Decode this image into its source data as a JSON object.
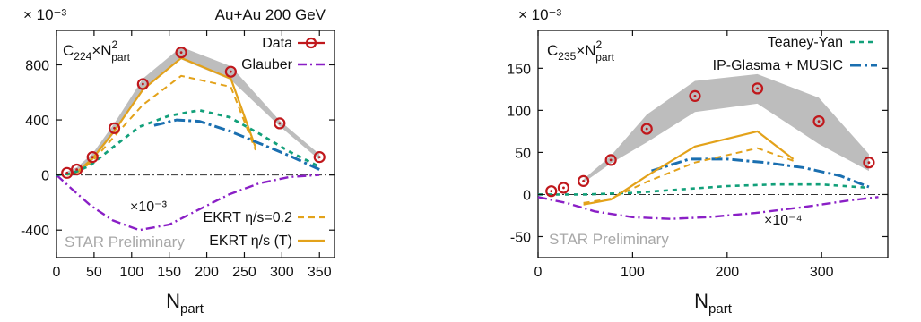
{
  "colors": {
    "data": "#c0181c",
    "band": "#bdbdbd",
    "glauber": "#8a1fc6",
    "ekrt": "#e3a21a",
    "teaney": "#12a07a",
    "glasma": "#1a6fb0",
    "prelim": "#a8a8a8"
  },
  "chart_data": [
    {
      "type": "line",
      "scale_label": "× 10⁻³",
      "top_label": "Au+Au 200 GeV",
      "ylabel_main": "C",
      "ylabel_sub": "224",
      "ylabel_mid": "×N",
      "ylabel_sup": "2",
      "ylabel_sub2": "part",
      "xlabel_main": "N",
      "xlabel_sub": "part",
      "prelim": "STAR Preliminary",
      "annotation": "×10⁻³",
      "xlim": [
        0,
        370
      ],
      "ylim": [
        -600,
        1050
      ],
      "xticks": [
        0,
        50,
        100,
        150,
        200,
        250,
        300,
        350
      ],
      "yticks": [
        -400,
        0,
        400,
        800
      ],
      "series": [
        {
          "name": "Data",
          "x": [
            14,
            27,
            48,
            77,
            115,
            166,
            232,
            297,
            350
          ],
          "y": [
            15,
            40,
            130,
            340,
            660,
            890,
            750,
            375,
            130
          ]
        },
        {
          "name": "Glauber",
          "x": [
            0,
            20,
            45,
            75,
            110,
            150,
            190,
            230,
            270,
            310,
            350
          ],
          "y": [
            0,
            -100,
            -220,
            -330,
            -400,
            -360,
            -250,
            -140,
            -60,
            -15,
            0
          ]
        },
        {
          "name": "EKRT η/s=0.2",
          "x": [
            14,
            27,
            48,
            77,
            115,
            166,
            232,
            265
          ],
          "y": [
            0,
            15,
            100,
            280,
            510,
            720,
            640,
            180
          ]
        },
        {
          "name": "EKRT η/s (T)",
          "x": [
            14,
            27,
            48,
            77,
            115,
            166,
            232,
            265
          ],
          "y": [
            0,
            20,
            120,
            320,
            620,
            850,
            700,
            200
          ]
        },
        {
          "name": "",
          "x": [
            0,
            20,
            45,
            75,
            110,
            150,
            190,
            230,
            270,
            310,
            350
          ],
          "y": [
            0,
            10,
            70,
            200,
            350,
            430,
            470,
            420,
            300,
            170,
            60
          ]
        },
        {
          "name": "",
          "x": [
            130,
            160,
            190,
            230,
            270,
            310,
            350
          ],
          "y": [
            360,
            400,
            390,
            320,
            230,
            140,
            40
          ]
        }
      ],
      "band_upper": {
        "x": [
          14,
          27,
          48,
          77,
          115,
          166,
          232,
          297,
          350
        ],
        "y": [
          25,
          55,
          155,
          375,
          700,
          930,
          790,
          395,
          150
        ]
      },
      "band_lower": {
        "x": [
          14,
          27,
          48,
          77,
          115,
          166,
          232,
          297,
          350
        ],
        "y": [
          5,
          25,
          105,
          305,
          620,
          840,
          690,
          355,
          110
        ]
      },
      "legend": [
        {
          "key": "data",
          "label": "Data"
        },
        {
          "key": "glauber",
          "label": "Glauber"
        },
        {
          "key": "ekrt02",
          "label": "EKRT η/s=0.2"
        },
        {
          "key": "ekrtT",
          "label": "EKRT η/s (T)"
        }
      ]
    },
    {
      "type": "line",
      "scale_label": "× 10⁻³",
      "ylabel_main": "C",
      "ylabel_sub": "235",
      "ylabel_mid": "×N",
      "ylabel_sup": "2",
      "ylabel_sub2": "part",
      "xlabel_main": "N",
      "xlabel_sub": "part",
      "prelim": "STAR Preliminary",
      "annotation": "×10⁻⁴",
      "xlim": [
        0,
        370
      ],
      "ylim": [
        -75,
        195
      ],
      "xticks": [
        0,
        100,
        200,
        300
      ],
      "yticks": [
        -50,
        0,
        50,
        100,
        150
      ],
      "series": [
        {
          "name": "Data",
          "x": [
            14,
            27,
            48,
            77,
            115,
            166,
            232,
            297,
            350
          ],
          "y": [
            4,
            8,
            16,
            41,
            78,
            117,
            126,
            87,
            38
          ]
        },
        {
          "name": "Teaney-Yan",
          "x": [
            0,
            50,
            100,
            150,
            200,
            250,
            300,
            350
          ],
          "y": [
            0,
            0,
            2,
            6,
            10,
            12,
            12,
            8
          ]
        },
        {
          "name": "IP-Glasma + MUSIC",
          "x": [
            120,
            160,
            200,
            240,
            280,
            320,
            350
          ],
          "y": [
            28,
            42,
            42,
            38,
            32,
            22,
            9
          ]
        },
        {
          "name": "",
          "x": [
            0,
            30,
            60,
            100,
            140,
            180,
            230,
            280,
            330,
            360
          ],
          "y": [
            -3,
            -10,
            -20,
            -27,
            -29,
            -27,
            -22,
            -15,
            -7,
            -3
          ]
        },
        {
          "name": "",
          "x": [
            48,
            77,
            115,
            166,
            232,
            270
          ],
          "y": [
            -10,
            -5,
            15,
            38,
            55,
            40
          ]
        },
        {
          "name": "",
          "x": [
            48,
            77,
            115,
            166,
            232,
            270
          ],
          "y": [
            -12,
            -6,
            22,
            57,
            75,
            42
          ]
        }
      ],
      "band_upper": {
        "x": [
          48,
          77,
          115,
          166,
          232,
          297,
          350
        ],
        "y": [
          18,
          46,
          95,
          135,
          143,
          115,
          48
        ]
      },
      "band_lower": {
        "x": [
          48,
          77,
          115,
          166,
          232,
          297,
          350
        ],
        "y": [
          14,
          37,
          62,
          98,
          108,
          60,
          28
        ]
      },
      "legend": [
        {
          "key": "teaney",
          "label": "Teaney-Yan"
        },
        {
          "key": "glasma",
          "label": "IP-Glasma + MUSIC"
        }
      ]
    }
  ]
}
